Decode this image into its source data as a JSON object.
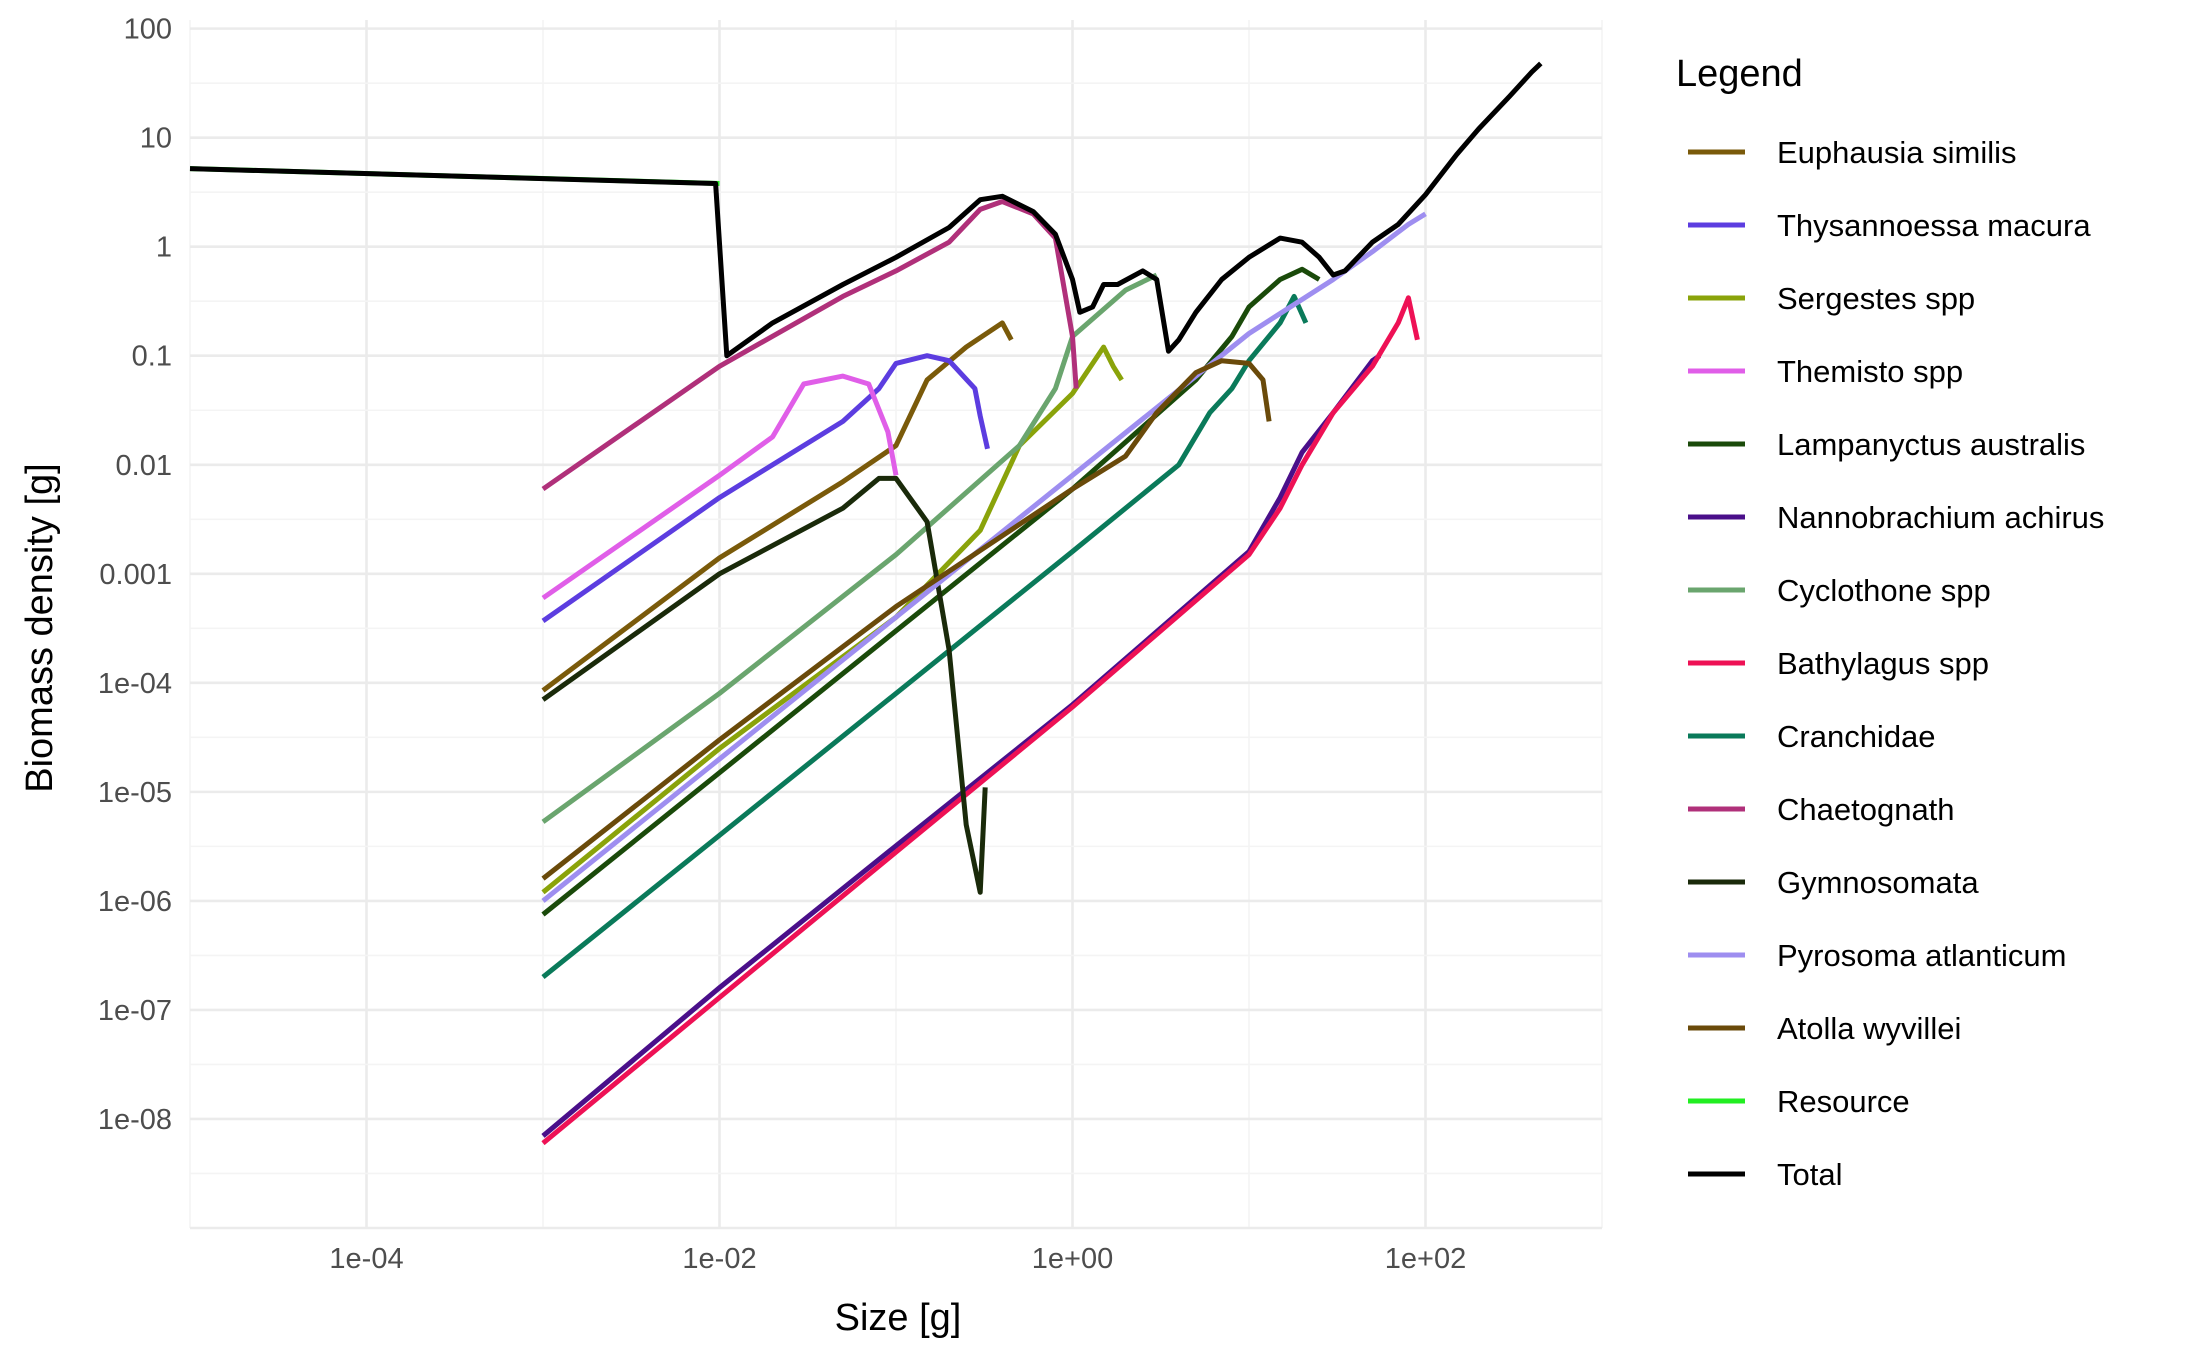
{
  "chart_data": {
    "type": "line",
    "xlabel": "Size [g]",
    "ylabel": "Biomass density [g]",
    "x_scale": "log10",
    "y_scale": "log10",
    "xlim": [
      1e-05,
      1000
    ],
    "ylim": [
      1e-09,
      120
    ],
    "x_ticks": [
      {
        "value": 0.0001,
        "label": "1e-04"
      },
      {
        "value": 0.01,
        "label": "1e-02"
      },
      {
        "value": 1,
        "label": "1e+00"
      },
      {
        "value": 100,
        "label": "1e+02"
      }
    ],
    "y_ticks": [
      {
        "value": 100,
        "label": "100"
      },
      {
        "value": 10,
        "label": "10"
      },
      {
        "value": 1,
        "label": "1"
      },
      {
        "value": 0.1,
        "label": "0.1"
      },
      {
        "value": 0.01,
        "label": "0.01"
      },
      {
        "value": 0.001,
        "label": "0.001"
      },
      {
        "value": 0.0001,
        "label": "1e-04"
      },
      {
        "value": 1e-05,
        "label": "1e-05"
      },
      {
        "value": 1e-06,
        "label": "1e-06"
      },
      {
        "value": 1e-07,
        "label": "1e-07"
      },
      {
        "value": 1e-08,
        "label": "1e-08"
      }
    ],
    "grid": true,
    "legend": {
      "title": "Legend",
      "position": "right"
    },
    "series": [
      {
        "name": "Euphausia similis",
        "color": "#7a5a0a",
        "x": [
          0.001,
          0.01,
          0.05,
          0.1,
          0.15,
          0.25,
          0.4,
          0.45
        ],
        "y": [
          8.5e-05,
          0.0014,
          0.007,
          0.015,
          0.06,
          0.12,
          0.2,
          0.14
        ]
      },
      {
        "name": "Thysannoessa macura",
        "color": "#5c3de0",
        "x": [
          0.001,
          0.01,
          0.05,
          0.08,
          0.1,
          0.15,
          0.2,
          0.28,
          0.3,
          0.33
        ],
        "y": [
          0.00037,
          0.005,
          0.025,
          0.05,
          0.085,
          0.1,
          0.09,
          0.05,
          0.028,
          0.014
        ]
      },
      {
        "name": "Sergestes spp",
        "color": "#8aa30a",
        "x": [
          0.001,
          0.01,
          0.1,
          0.3,
          0.5,
          1,
          1.5,
          1.7,
          1.9
        ],
        "y": [
          1.2e-06,
          2.5e-05,
          0.0004,
          0.0025,
          0.015,
          0.045,
          0.12,
          0.08,
          0.06
        ]
      },
      {
        "name": "Themisto spp",
        "color": "#e05ee8",
        "x": [
          0.001,
          0.01,
          0.02,
          0.03,
          0.05,
          0.07,
          0.09,
          0.1
        ],
        "y": [
          0.0006,
          0.008,
          0.018,
          0.055,
          0.065,
          0.055,
          0.02,
          0.008
        ]
      },
      {
        "name": "Lampanyctus australis",
        "color": "#1a4a0a",
        "x": [
          0.001,
          0.01,
          0.1,
          1,
          5,
          8,
          10,
          15,
          20,
          25
        ],
        "y": [
          7.5e-07,
          1.5e-05,
          0.0003,
          0.006,
          0.06,
          0.15,
          0.28,
          0.5,
          0.62,
          0.5
        ]
      },
      {
        "name": "Nannobrachium achirus",
        "color": "#4a0f8a",
        "x": [
          0.001,
          0.01,
          0.1,
          1,
          10,
          15,
          20,
          30,
          50,
          55
        ],
        "y": [
          7e-09,
          1.6e-07,
          3.2e-06,
          6.3e-05,
          0.0016,
          0.005,
          0.013,
          0.03,
          0.09,
          0.1
        ]
      },
      {
        "name": "Cyclothone spp",
        "color": "#6aa56e",
        "x": [
          0.001,
          0.01,
          0.1,
          0.5,
          0.8,
          1,
          2,
          3
        ],
        "y": [
          5.3e-06,
          8e-05,
          0.0015,
          0.015,
          0.05,
          0.15,
          0.4,
          0.55
        ]
      },
      {
        "name": "Bathylagus spp",
        "color": "#ee1155",
        "x": [
          0.001,
          0.01,
          0.1,
          1,
          10,
          15,
          20,
          30,
          50,
          70,
          80,
          90
        ],
        "y": [
          6e-09,
          1.3e-07,
          2.8e-06,
          6e-05,
          0.0015,
          0.004,
          0.01,
          0.03,
          0.08,
          0.2,
          0.34,
          0.14
        ]
      },
      {
        "name": "Cranchidae",
        "color": "#0a7a5a",
        "x": [
          0.001,
          0.01,
          0.1,
          1,
          4,
          6,
          8,
          10,
          15,
          18,
          21
        ],
        "y": [
          2e-07,
          4e-06,
          8e-05,
          0.0016,
          0.01,
          0.03,
          0.05,
          0.09,
          0.2,
          0.35,
          0.2
        ]
      },
      {
        "name": "Chaetognath",
        "color": "#b0307a",
        "x": [
          0.001,
          0.01,
          0.05,
          0.1,
          0.2,
          0.3,
          0.4,
          0.6,
          0.8,
          1,
          1.05
        ],
        "y": [
          0.006,
          0.08,
          0.35,
          0.6,
          1.1,
          2.2,
          2.6,
          2,
          1.2,
          0.15,
          0.05
        ]
      },
      {
        "name": "Gymnosomata",
        "color": "#1a2a0a",
        "x": [
          0.001,
          0.01,
          0.05,
          0.08,
          0.1,
          0.15,
          0.2,
          0.25,
          0.3,
          0.32
        ],
        "y": [
          7e-05,
          0.001,
          0.004,
          0.0075,
          0.0075,
          0.003,
          0.0002,
          5e-06,
          1.2e-06,
          1.1e-05
        ]
      },
      {
        "name": "Pyrosoma atlanticum",
        "color": "#9e8ef0",
        "x": [
          0.001,
          0.01,
          0.1,
          1,
          10,
          30,
          50,
          80,
          100
        ],
        "y": [
          1e-06,
          2e-05,
          0.0004,
          0.008,
          0.16,
          0.5,
          0.9,
          1.6,
          2
        ]
      },
      {
        "name": "Atolla wyvillei",
        "color": "#6a4a0a",
        "x": [
          0.001,
          0.01,
          0.1,
          1,
          2,
          3,
          5,
          7,
          10,
          12,
          13
        ],
        "y": [
          1.6e-06,
          3e-05,
          0.0005,
          0.006,
          0.012,
          0.03,
          0.07,
          0.09,
          0.085,
          0.06,
          0.025
        ]
      },
      {
        "name": "Resource",
        "color": "#22ee22",
        "x": [
          1e-05,
          0.01
        ],
        "y": [
          5.2,
          3.8
        ]
      },
      {
        "name": "Total",
        "color": "#000000",
        "x": [
          1e-05,
          0.0095,
          0.011,
          0.02,
          0.05,
          0.1,
          0.2,
          0.3,
          0.4,
          0.6,
          0.8,
          1,
          1.1,
          1.3,
          1.5,
          1.8,
          2.5,
          3,
          3.5,
          4,
          5,
          7,
          10,
          15,
          20,
          25,
          30,
          35,
          50,
          70,
          100,
          150,
          200,
          300,
          400,
          450
        ],
        "y": [
          5.2,
          3.8,
          0.1,
          0.2,
          0.45,
          0.8,
          1.5,
          2.7,
          2.9,
          2.1,
          1.3,
          0.5,
          0.25,
          0.28,
          0.45,
          0.45,
          0.6,
          0.5,
          0.11,
          0.14,
          0.25,
          0.5,
          0.8,
          1.2,
          1.1,
          0.8,
          0.55,
          0.6,
          1.1,
          1.6,
          3,
          7,
          12,
          24,
          40,
          48
        ]
      }
    ]
  }
}
